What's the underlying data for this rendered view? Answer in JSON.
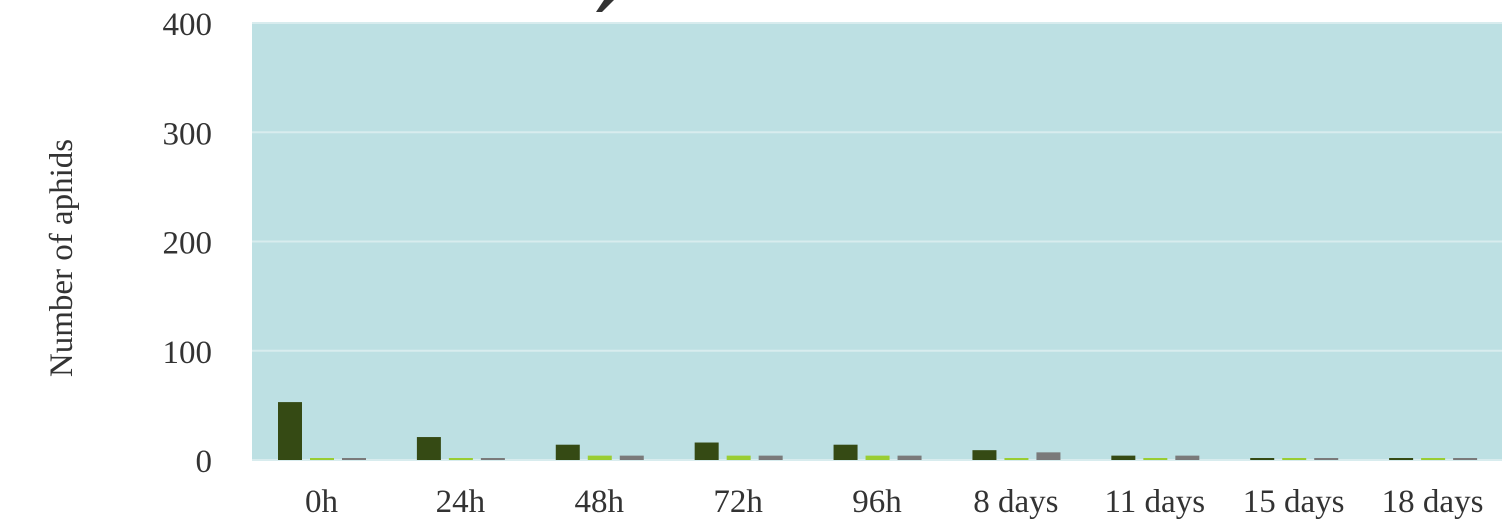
{
  "chart_data": {
    "type": "bar",
    "title": "",
    "xlabel": "",
    "ylabel": "Number of aphids",
    "ylim": [
      0,
      400
    ],
    "yticks": [
      0,
      100,
      200,
      300,
      400
    ],
    "grid": true,
    "legend": "none",
    "categories": [
      "0h",
      "24h",
      "48h",
      "72h",
      "96h",
      "8 days",
      "11 days",
      "15 days",
      "18 days"
    ],
    "series": [
      {
        "color": "#354a14",
        "values": [
          53,
          21,
          14,
          16,
          14,
          9,
          4,
          0,
          0
        ]
      },
      {
        "color": "#9acd32",
        "values": [
          0,
          0,
          4,
          4,
          4,
          0,
          0,
          0,
          0
        ]
      },
      {
        "color": "#7a7a7a",
        "values": [
          0,
          0,
          4,
          4,
          4,
          7,
          4,
          0,
          0
        ]
      }
    ]
  },
  "colors": {
    "plot_background": "#bde0e3",
    "gridline": "#d8ecee"
  }
}
